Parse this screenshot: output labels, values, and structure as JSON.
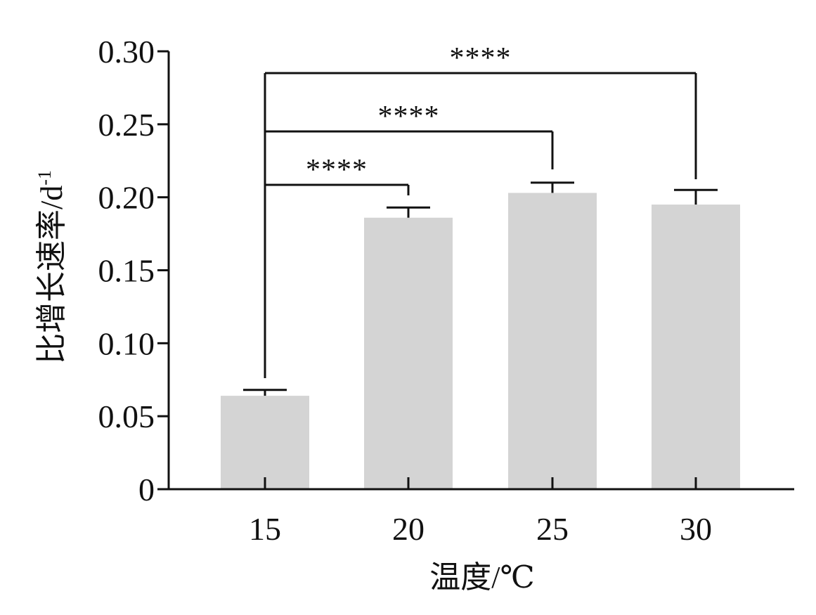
{
  "chart_data": {
    "type": "bar",
    "categories": [
      "15",
      "20",
      "25",
      "30"
    ],
    "values": [
      0.064,
      0.186,
      0.203,
      0.195
    ],
    "errors": [
      0.004,
      0.007,
      0.007,
      0.01
    ],
    "xlabel": "温度/℃",
    "ylabel_main": "比增长速率/d",
    "ylabel_sup": "-1",
    "ylim": [
      0,
      0.3
    ],
    "yticks": [
      "0",
      "0.05",
      "0.10",
      "0.15",
      "0.20",
      "0.25",
      "0.30"
    ],
    "significance": [
      {
        "from": "15",
        "to": "20",
        "label": "****"
      },
      {
        "from": "15",
        "to": "25",
        "label": "****"
      },
      {
        "from": "15",
        "to": "30",
        "label": "****"
      }
    ],
    "colors": {
      "bar": "#d4d4d4",
      "axis": "#111111"
    },
    "grid": false,
    "legend": "none"
  }
}
